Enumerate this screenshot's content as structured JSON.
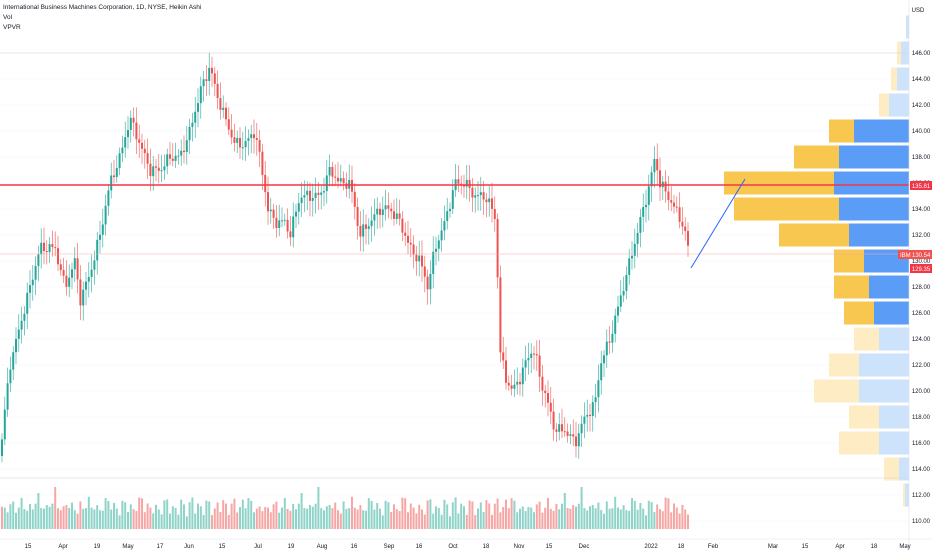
{
  "legend": {
    "title": "International Business Machines Corporation, 1D, NYSE, Heikin Ashi",
    "vol_label": "Vol",
    "vpvr_label": "VPVR"
  },
  "currency": "USD",
  "price_axis_ticks": [
    "146.00",
    "144.00",
    "142.00",
    "140.00",
    "138.00",
    "136.00",
    "134.00",
    "132.00",
    "130.00",
    "128.00",
    "126.00",
    "124.00",
    "122.00",
    "120.00",
    "118.00",
    "116.00",
    "114.00",
    "112.00",
    "110.00"
  ],
  "price_tags": {
    "level_line": "135.81",
    "last_price_prefix": "IBM",
    "last_price": "130.54",
    "countdown_price": "129.35"
  },
  "time_axis_ticks": [
    "15",
    "Apr",
    "19",
    "May",
    "17",
    "Jun",
    "15",
    "Jul",
    "19",
    "Aug",
    "16",
    "Sep",
    "16",
    "Oct",
    "18",
    "Nov",
    "15",
    "Dec",
    "2022",
    "18",
    "Feb",
    "Mar",
    "15",
    "Apr",
    "18",
    "May"
  ],
  "colors": {
    "up": "#26a69a",
    "down": "#ef5350",
    "level_line": "#f23645",
    "vpvr_up": "#5b9cf6",
    "vpvr_down": "#f7c74f",
    "vpvr_up_faded": "#cde2fb",
    "vpvr_down_faded": "#fdecc4",
    "trend_line": "#2962ff"
  },
  "chart_data": {
    "type": "candlestick",
    "symbol": "IBM",
    "exchange": "NYSE",
    "interval": "1D",
    "style": "Heikin Ashi",
    "ylim": [
      109,
      150
    ],
    "level_line_price": 135.81,
    "last_price": 130.54,
    "path_points": [
      [
        0,
        115
      ],
      [
        10,
        122
      ],
      [
        20,
        125
      ],
      [
        30,
        128
      ],
      [
        40,
        131
      ],
      [
        55,
        131
      ],
      [
        65,
        128
      ],
      [
        75,
        130
      ],
      [
        80,
        127
      ],
      [
        90,
        129
      ],
      [
        100,
        132
      ],
      [
        110,
        136
      ],
      [
        120,
        138
      ],
      [
        130,
        141
      ],
      [
        140,
        139
      ],
      [
        150,
        137
      ],
      [
        160,
        137
      ],
      [
        170,
        138
      ],
      [
        180,
        138
      ],
      [
        190,
        140
      ],
      [
        200,
        143
      ],
      [
        210,
        145
      ],
      [
        216,
        143
      ],
      [
        225,
        141
      ],
      [
        235,
        139
      ],
      [
        245,
        139
      ],
      [
        255,
        140
      ],
      [
        262,
        137
      ],
      [
        268,
        134
      ],
      [
        275,
        133
      ],
      [
        285,
        133
      ],
      [
        290,
        132
      ],
      [
        300,
        135
      ],
      [
        310,
        135
      ],
      [
        320,
        135
      ],
      [
        330,
        137
      ],
      [
        340,
        136
      ],
      [
        350,
        136
      ],
      [
        360,
        132
      ],
      [
        370,
        133
      ],
      [
        380,
        134
      ],
      [
        390,
        134
      ],
      [
        400,
        133
      ],
      [
        410,
        131
      ],
      [
        420,
        130
      ],
      [
        428,
        128
      ],
      [
        435,
        131
      ],
      [
        445,
        133
      ],
      [
        455,
        136
      ],
      [
        465,
        136
      ],
      [
        475,
        135
      ],
      [
        485,
        135
      ],
      [
        492,
        134
      ],
      [
        496,
        133
      ],
      [
        500,
        123
      ],
      [
        506,
        121
      ],
      [
        512,
        120
      ],
      [
        520,
        121
      ],
      [
        530,
        123
      ],
      [
        535,
        123
      ],
      [
        540,
        121
      ],
      [
        548,
        119
      ],
      [
        555,
        117
      ],
      [
        565,
        117
      ],
      [
        575,
        116
      ],
      [
        585,
        118
      ],
      [
        595,
        119
      ],
      [
        600,
        122
      ],
      [
        610,
        124
      ],
      [
        620,
        127
      ],
      [
        630,
        130
      ],
      [
        640,
        133
      ],
      [
        650,
        136
      ],
      [
        655,
        138
      ],
      [
        660,
        136
      ],
      [
        668,
        135
      ],
      [
        675,
        134
      ],
      [
        682,
        133
      ],
      [
        690,
        130.5
      ]
    ],
    "volume_heights": [
      22,
      18,
      21,
      25,
      23,
      20,
      22,
      26,
      24,
      19,
      21,
      23,
      27,
      30,
      24,
      22,
      20,
      25,
      28,
      35,
      23,
      21,
      19,
      26,
      24,
      22,
      20,
      18,
      23,
      21,
      25,
      27,
      22,
      24,
      20,
      19,
      23,
      26,
      28,
      25,
      22,
      20,
      18,
      24,
      26,
      23,
      21,
      19,
      25,
      27,
      29,
      24,
      22,
      20,
      23,
      21,
      18,
      22,
      25,
      27,
      24,
      20,
      19,
      23,
      26,
      22,
      21,
      24,
      28,
      25,
      23,
      20,
      22,
      26,
      24,
      21,
      19,
      23,
      25,
      27,
      22,
      20,
      24,
      26,
      23,
      21,
      25,
      28,
      30,
      24,
      22,
      20,
      19,
      23
    ],
    "vpvr_rows": [
      {
        "price": 147,
        "up": 3,
        "down": 0
      },
      {
        "price": 145,
        "up": 8,
        "down": 4
      },
      {
        "price": 143,
        "up": 12,
        "down": 6
      },
      {
        "price": 141,
        "up": 20,
        "down": 10
      },
      {
        "price": 139,
        "up": 55,
        "down": 25
      },
      {
        "price": 137,
        "up": 70,
        "down": 45
      },
      {
        "price": 135,
        "up": 75,
        "down": 110
      },
      {
        "price": 133,
        "up": 70,
        "down": 105
      },
      {
        "price": 131,
        "up": 60,
        "down": 70
      },
      {
        "price": 129,
        "up": 45,
        "down": 30
      },
      {
        "price": 127,
        "up": 40,
        "down": 35
      },
      {
        "price": 125,
        "up": 35,
        "down": 30
      },
      {
        "price": 123,
        "up": 30,
        "down": 25
      },
      {
        "price": 121,
        "up": 50,
        "down": 30
      },
      {
        "price": 119,
        "up": 50,
        "down": 45
      },
      {
        "price": 117,
        "up": 30,
        "down": 30
      },
      {
        "price": 115,
        "up": 30,
        "down": 40
      },
      {
        "price": 113,
        "up": 10,
        "down": 15
      },
      {
        "price": 111,
        "up": 4,
        "down": 2
      }
    ]
  }
}
